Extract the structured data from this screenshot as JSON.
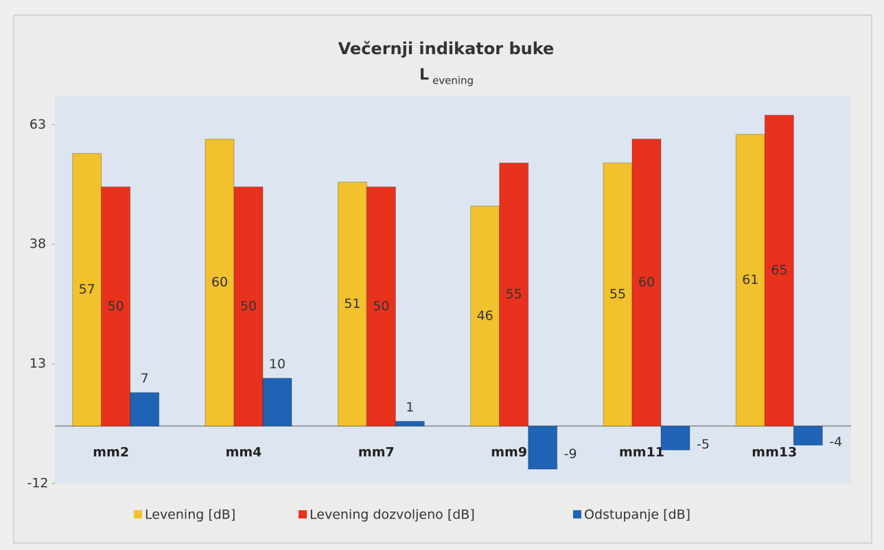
{
  "chart_data": {
    "type": "bar",
    "title": "Večernji indikator buke",
    "subtitle": "L",
    "subtitle_sub": "evening",
    "categories": [
      "mm2",
      "mm4",
      "mm7",
      "mm9",
      "mm11",
      "mm13"
    ],
    "series": [
      {
        "name": "Levening [dB]",
        "color": "#f2c12e",
        "values": [
          57,
          60,
          51,
          46,
          55,
          61
        ]
      },
      {
        "name": "Levening dozvoljeno [dB]",
        "color": "#e8321e",
        "values": [
          50,
          50,
          50,
          55,
          60,
          65
        ]
      },
      {
        "name": "Odstupanje [dB]",
        "color": "#1f63b5",
        "values": [
          7,
          10,
          1,
          -9,
          -5,
          -4
        ]
      }
    ],
    "ylim": [
      -12,
      69
    ],
    "yticks": [
      -12,
      13,
      38,
      63
    ],
    "grid": false,
    "legend": "bottom"
  }
}
